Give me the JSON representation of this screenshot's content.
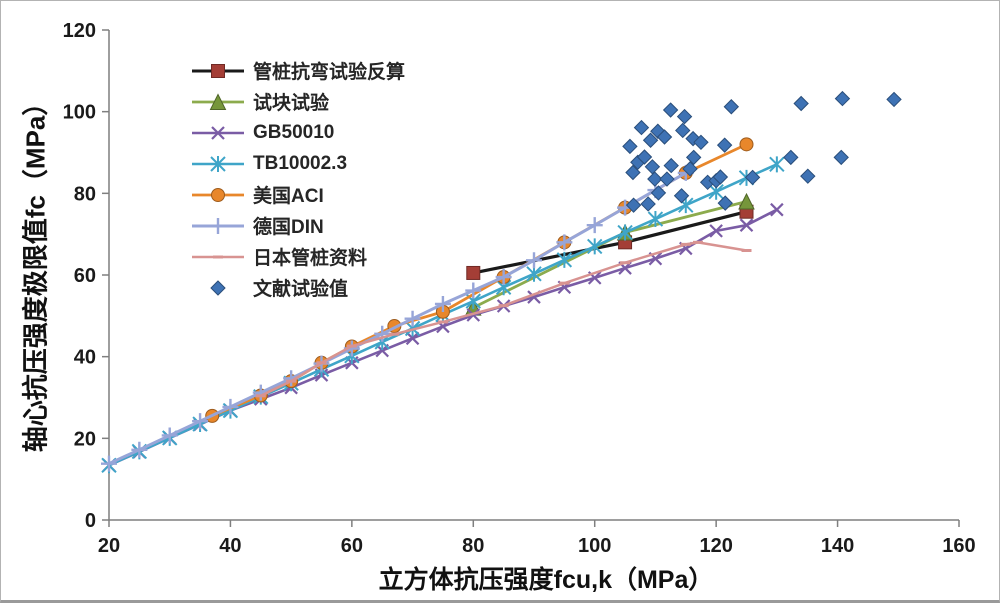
{
  "chart_data": {
    "type": "line+scatter",
    "title": "",
    "xlabel": "立方体抗压强度fcu,k（MPa）",
    "ylabel": "轴心抗压强度极限值fc（MPa）",
    "x_axis": {
      "min": 20,
      "max": 160,
      "ticks": [
        20,
        40,
        60,
        80,
        100,
        120,
        140,
        160
      ]
    },
    "y_axis": {
      "min": 0,
      "max": 120,
      "ticks": [
        0,
        20,
        40,
        60,
        80,
        100,
        120
      ]
    },
    "grid": false,
    "legend_position": "top-left-inside",
    "axis_color": "#7f7f7f",
    "tick_label_color": "#1a1a1a",
    "series": [
      {
        "name": "管桩抗弯试验反算",
        "type": "line",
        "line_color": "#1a1a1a",
        "line_width": 3.2,
        "marker": "square",
        "marker_color": "#A43E36",
        "points": [
          [
            80,
            60.5
          ],
          [
            105,
            68
          ],
          [
            125,
            75.5
          ]
        ]
      },
      {
        "name": "试块试验",
        "type": "line",
        "line_color": "#8CAB4D",
        "line_width": 2.8,
        "marker": "triangle",
        "marker_color": "#76963B",
        "points": [
          [
            80,
            52
          ],
          [
            105,
            70.4
          ],
          [
            125,
            78
          ]
        ]
      },
      {
        "name": "GB50010",
        "type": "line",
        "line_color": "#7A5CA5",
        "line_width": 2.6,
        "marker": "x",
        "marker_color": "#7A5CA5",
        "points": [
          [
            20,
            13.4
          ],
          [
            25,
            16.7
          ],
          [
            30,
            20.1
          ],
          [
            35,
            23.4
          ],
          [
            40,
            26.8
          ],
          [
            45,
            29.6
          ],
          [
            50,
            32.4
          ],
          [
            55,
            35.5
          ],
          [
            60,
            38.5
          ],
          [
            65,
            41.5
          ],
          [
            70,
            44.5
          ],
          [
            75,
            47.4
          ],
          [
            80,
            50.2
          ],
          [
            85,
            52.4
          ],
          [
            90,
            54.6
          ],
          [
            95,
            57
          ],
          [
            100,
            59.3
          ],
          [
            105,
            61.7
          ],
          [
            110,
            64
          ],
          [
            115,
            66.5
          ],
          [
            120,
            70.8
          ],
          [
            125,
            72.2
          ],
          [
            130,
            76
          ]
        ]
      },
      {
        "name": "TB10002.3",
        "type": "line",
        "line_color": "#3FA5C8",
        "line_width": 2.6,
        "marker": "asterisk",
        "marker_color": "#3FA5C8",
        "points": [
          [
            20,
            13.4
          ],
          [
            25,
            16.8
          ],
          [
            30,
            20.1
          ],
          [
            35,
            23.5
          ],
          [
            40,
            26.8
          ],
          [
            45,
            30.2
          ],
          [
            50,
            33.5
          ],
          [
            55,
            36.9
          ],
          [
            60,
            40.2
          ],
          [
            65,
            43.6
          ],
          [
            70,
            46.9
          ],
          [
            75,
            50.3
          ],
          [
            80,
            53.6
          ],
          [
            85,
            57
          ],
          [
            90,
            60.3
          ],
          [
            95,
            63.7
          ],
          [
            100,
            67
          ],
          [
            105,
            70.4
          ],
          [
            110,
            73.7
          ],
          [
            115,
            77.1
          ],
          [
            120,
            80.4
          ],
          [
            125,
            83.8
          ],
          [
            130,
            87.1
          ]
        ]
      },
      {
        "name": "美国ACI",
        "type": "line",
        "line_color": "#E8872B",
        "line_width": 2.8,
        "marker": "circle",
        "marker_color": "#E8872B",
        "points": [
          [
            37,
            25.5
          ],
          [
            45,
            30.5
          ],
          [
            50,
            34
          ],
          [
            55,
            38.5
          ],
          [
            60,
            42.5
          ],
          [
            67,
            47.5
          ],
          [
            75,
            51
          ],
          [
            85,
            59.5
          ],
          [
            95,
            68
          ],
          [
            105,
            76.5
          ],
          [
            115,
            85
          ],
          [
            125,
            92
          ]
        ]
      },
      {
        "name": "德国DIN",
        "type": "line",
        "line_color": "#97A5D8",
        "line_width": 3,
        "marker": "plus",
        "marker_color": "#97A5D8",
        "points": [
          [
            20,
            13.8
          ],
          [
            25,
            17.2
          ],
          [
            30,
            20.7
          ],
          [
            35,
            24.2
          ],
          [
            40,
            27.7
          ],
          [
            45,
            31.2
          ],
          [
            50,
            34.7
          ],
          [
            55,
            38.3
          ],
          [
            60,
            42
          ],
          [
            65,
            45.6
          ],
          [
            70,
            49.3
          ],
          [
            75,
            52.9
          ],
          [
            80,
            56.2
          ],
          [
            85,
            59.5
          ],
          [
            90,
            63.6
          ],
          [
            95,
            68
          ],
          [
            100,
            72.2
          ],
          [
            105,
            76.5
          ],
          [
            110,
            80.8
          ],
          [
            115,
            85
          ]
        ]
      },
      {
        "name": "日本管桩资料",
        "type": "line",
        "line_color": "#D89391",
        "line_width": 2.5,
        "marker": "dash",
        "marker_color": "#D89391",
        "points": [
          [
            45,
            30.4
          ],
          [
            50,
            34
          ],
          [
            55,
            38.5
          ],
          [
            60,
            42.6
          ],
          [
            67,
            45.5
          ],
          [
            75,
            48.5
          ],
          [
            85,
            52.5
          ],
          [
            95,
            58
          ],
          [
            105,
            63
          ],
          [
            115,
            67.5
          ],
          [
            117,
            68
          ],
          [
            125,
            66
          ]
        ]
      },
      {
        "name": "文献试验值",
        "type": "scatter",
        "line_color": "none",
        "line_width": 0,
        "marker": "diamond",
        "marker_color": "#3E72B4",
        "points": [
          [
            105.8,
            91.5
          ],
          [
            106.3,
            85.1
          ],
          [
            106.4,
            77.1
          ],
          [
            107.1,
            87.6
          ],
          [
            107.7,
            96.1
          ],
          [
            108.2,
            88.9
          ],
          [
            108.8,
            77.4
          ],
          [
            109.2,
            93
          ],
          [
            109.5,
            86.5
          ],
          [
            109.9,
            83.5
          ],
          [
            110.4,
            95.2
          ],
          [
            110.5,
            80.1
          ],
          [
            111.5,
            93.8
          ],
          [
            111.9,
            83.5
          ],
          [
            112.5,
            100.4
          ],
          [
            112.6,
            86.8
          ],
          [
            114.3,
            79.4
          ],
          [
            114.5,
            95.4
          ],
          [
            114.8,
            98.8
          ],
          [
            115.7,
            86
          ],
          [
            116.2,
            93.4
          ],
          [
            116.3,
            88.8
          ],
          [
            117.5,
            92.5
          ],
          [
            118.6,
            82.7
          ],
          [
            120,
            83.1
          ],
          [
            120.7,
            84
          ],
          [
            121.4,
            91.8
          ],
          [
            121.5,
            77.6
          ],
          [
            122.5,
            101.2
          ],
          [
            126,
            83.9
          ],
          [
            132.3,
            88.8
          ],
          [
            134,
            102
          ],
          [
            135.1,
            84.2
          ],
          [
            140.6,
            88.8
          ],
          [
            140.8,
            103.2
          ],
          [
            149.3,
            103
          ]
        ]
      }
    ]
  },
  "frame": {
    "background": "#ffffff",
    "border_color": "#b3b3b3"
  }
}
